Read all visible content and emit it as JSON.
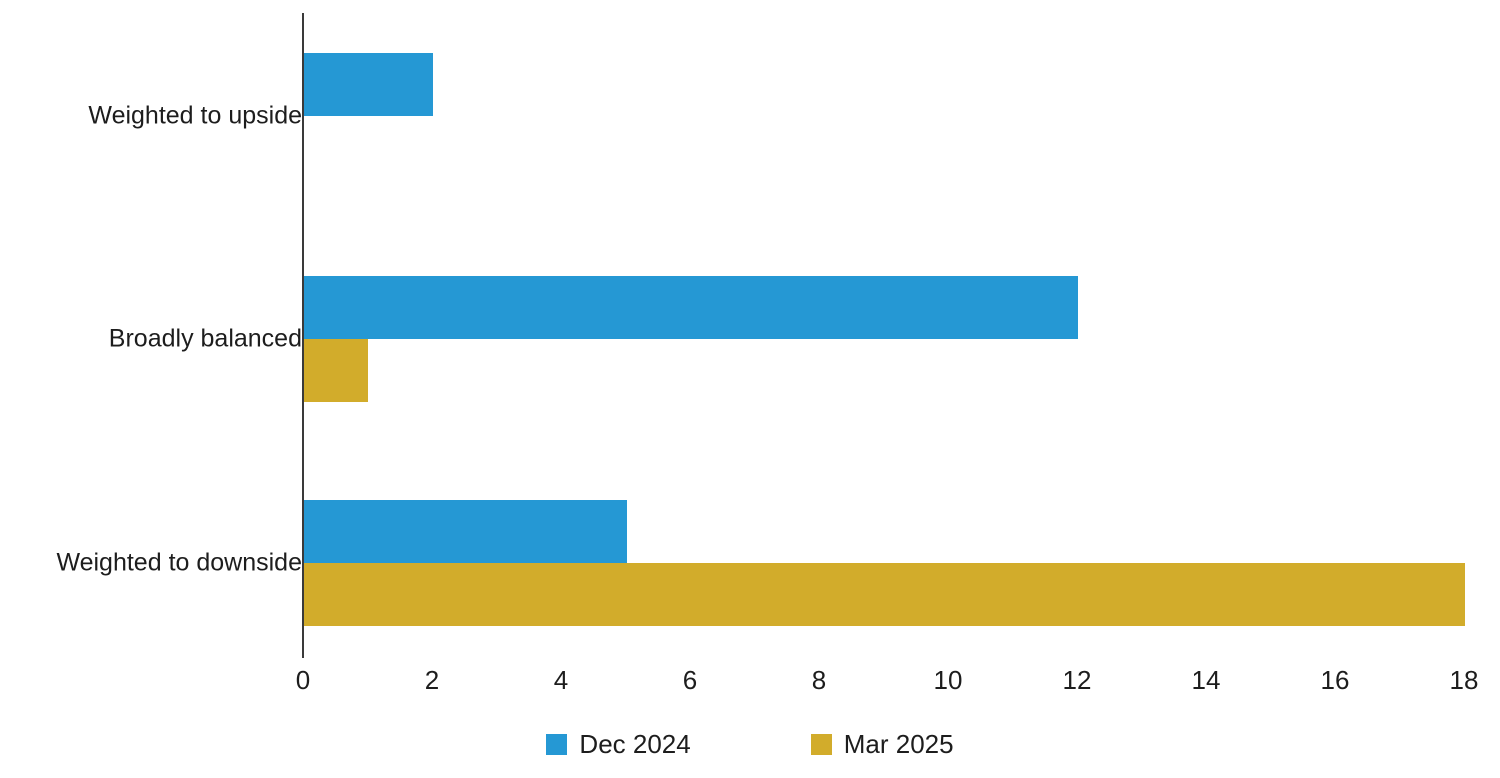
{
  "chart_data": {
    "type": "bar",
    "orientation": "horizontal",
    "title": "",
    "xlabel": "",
    "ylabel": "",
    "categories": [
      "Weighted to upside",
      "Broadly balanced",
      "Weighted to downside"
    ],
    "series": [
      {
        "name": "Dec 2024",
        "color": "#2598d4",
        "values": [
          2,
          12,
          5
        ]
      },
      {
        "name": "Mar 2025",
        "color": "#d2ac2b",
        "values": [
          0,
          1,
          18
        ]
      }
    ],
    "xlim": [
      0,
      18
    ],
    "x_ticks": [
      0,
      2,
      4,
      6,
      8,
      10,
      12,
      14,
      16,
      18
    ],
    "grid": false,
    "legend_position": "bottom",
    "colors": {
      "axis_line": "#3a3a3a",
      "text": "#1d1d1d",
      "background": "#ffffff"
    }
  }
}
